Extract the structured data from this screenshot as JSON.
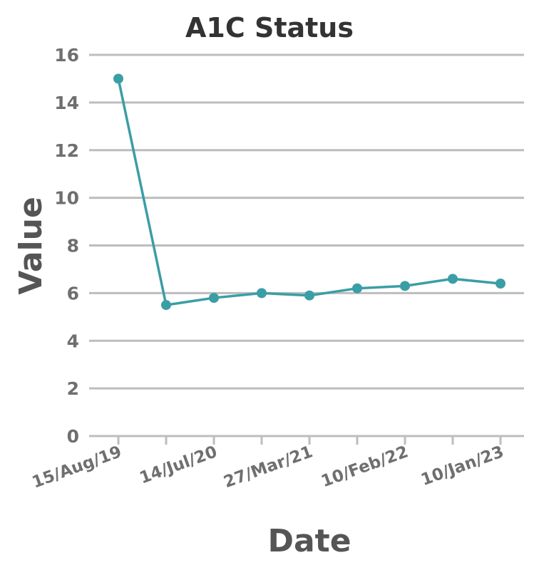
{
  "chart_data": {
    "type": "line",
    "title": "A1C Status",
    "xlabel": "Date",
    "ylabel": "Value",
    "ylim": [
      0,
      16
    ],
    "yticks": [
      0,
      2,
      4,
      6,
      8,
      10,
      12,
      14,
      16
    ],
    "x_tick_labels": [
      "15/Aug/19",
      "14/Jul/20",
      "27/Mar/21",
      "10/Feb/22",
      "10/Jan/23"
    ],
    "grid": true,
    "legend": "none",
    "colors": {
      "series": "#3a9ea5",
      "grid": "#bdbdbd",
      "title": "#333333",
      "axis_title": "#555555",
      "tick_label": "#6f6f6f"
    },
    "series": [
      {
        "values": [
          15.0,
          5.5,
          5.8,
          6.0,
          5.9,
          6.2,
          6.3,
          6.6,
          6.4
        ]
      }
    ]
  }
}
